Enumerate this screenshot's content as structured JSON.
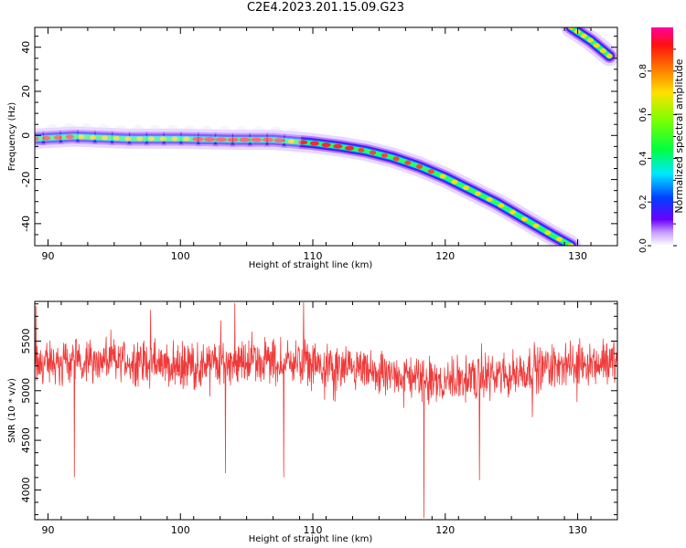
{
  "title": "C2E4.2023.201.15.09.G23",
  "chart_data": [
    {
      "type": "heatmap",
      "xlabel": "Height of straight line (km)",
      "ylabel": "Frequency (Hz)",
      "xlim": [
        89,
        133
      ],
      "ylim": [
        -50,
        49
      ],
      "x_ticks": [
        90,
        100,
        110,
        120,
        130
      ],
      "y_ticks": [
        -40,
        -20,
        0,
        20,
        40
      ],
      "colorbar": {
        "label": "Normalized spectral amplitude",
        "range": [
          0.0,
          1.0
        ],
        "ticks": [
          "0.0",
          "0.2",
          "0.4",
          "0.6",
          "0.8"
        ],
        "colormap": "gist_rainbow"
      },
      "ridges": [
        {
          "x": [
            89,
            92,
            96,
            100,
            104,
            107,
            109,
            110,
            112,
            114,
            116,
            118,
            120,
            122,
            124,
            126,
            128,
            129.5
          ],
          "y": [
            -1.5,
            -0.5,
            -1.5,
            -1.5,
            -2,
            -2,
            -3,
            -3.5,
            -5,
            -7,
            -10,
            -14,
            -19,
            -25,
            -31,
            -38,
            -45,
            -50
          ]
        },
        {
          "x": [
            129.5,
            131,
            132.4
          ],
          "y": [
            49,
            43,
            36
          ]
        }
      ]
    },
    {
      "type": "line",
      "xlabel": "Height of straight line (km)",
      "ylabel": "SNR (10 * v/v)",
      "xlim": [
        89,
        133
      ],
      "ylim": [
        3700,
        5900
      ],
      "x_ticks": [
        90,
        100,
        110,
        120,
        130
      ],
      "y_ticks": [
        4000,
        4500,
        5000,
        5500
      ],
      "color": "#f03a3a",
      "baseline": [
        [
          89,
          5250
        ],
        [
          92,
          5300
        ],
        [
          96,
          5300
        ],
        [
          100,
          5250
        ],
        [
          104,
          5300
        ],
        [
          108,
          5300
        ],
        [
          110,
          5250
        ],
        [
          112,
          5200
        ],
        [
          116,
          5150
        ],
        [
          120,
          5100
        ],
        [
          124,
          5150
        ],
        [
          128,
          5250
        ],
        [
          133,
          5300
        ]
      ],
      "noise_amplitude": 170,
      "spikes": [
        {
          "x": 89.1,
          "y": 5850
        },
        {
          "x": 92.0,
          "y": 4130
        },
        {
          "x": 103.4,
          "y": 4170
        },
        {
          "x": 104.1,
          "y": 5880
        },
        {
          "x": 107.8,
          "y": 4130
        },
        {
          "x": 109.3,
          "y": 5890
        },
        {
          "x": 118.4,
          "y": 3720
        },
        {
          "x": 122.6,
          "y": 4100
        }
      ]
    }
  ]
}
